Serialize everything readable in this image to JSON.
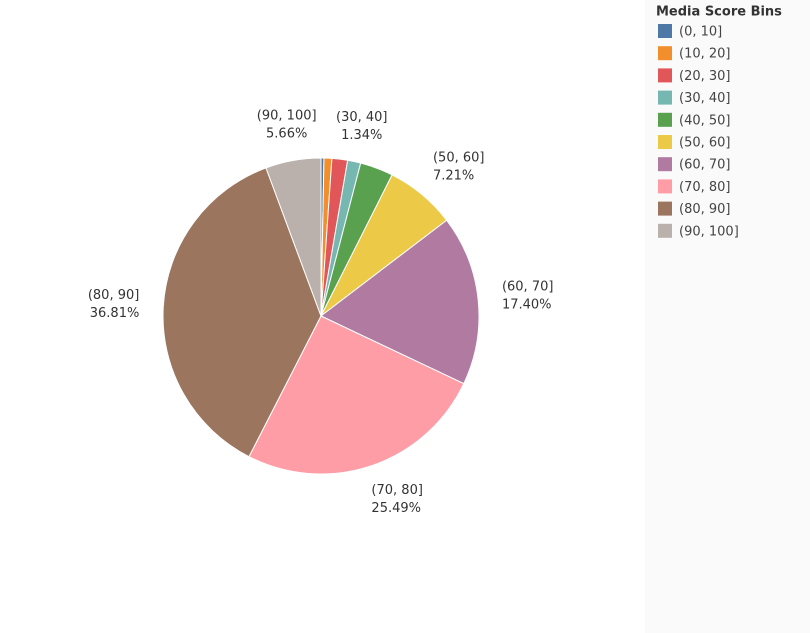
{
  "chart_data": {
    "type": "pie",
    "legend_title": "Media Score Bins",
    "categories": [
      "(0, 10]",
      "(10, 20]",
      "(20, 30]",
      "(30, 40]",
      "(40, 50]",
      "(50, 60]",
      "(60, 70]",
      "(70, 80]",
      "(80, 90]",
      "(90, 100]"
    ],
    "values": [
      0.3,
      0.8,
      1.6,
      1.34,
      3.39,
      7.21,
      17.4,
      25.49,
      36.81,
      5.66
    ],
    "value_labels": [
      null,
      null,
      null,
      "1.34%",
      null,
      "7.21%",
      "17.40%",
      "25.49%",
      "36.81%",
      "5.66%"
    ],
    "colors": [
      "#4e79a7",
      "#f28e2b",
      "#e15759",
      "#76b7b2",
      "#59a14f",
      "#edc948",
      "#b07aa1",
      "#ff9da7",
      "#9c755f",
      "#bab0ac"
    ],
    "legend_position": "right"
  }
}
